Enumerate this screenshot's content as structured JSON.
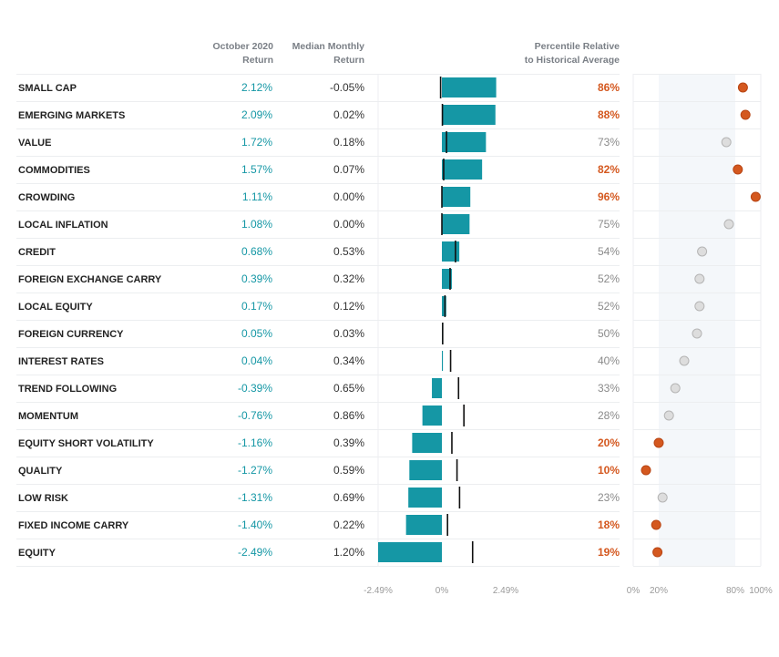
{
  "headers": {
    "return_line1": "October 2020",
    "return_line2": "Return",
    "median_line1": "Median Monthly",
    "median_line2": "Return",
    "pct_line1": "Percentile Relative",
    "pct_line2": "to Historical Average"
  },
  "chart_data": {
    "type": "table",
    "rows": [
      {
        "label": "SMALL CAP",
        "ret": 2.12,
        "ret_text": "2.12%",
        "median": -0.05,
        "median_text": "-0.05%",
        "pct": 86,
        "pct_text": "86%",
        "highlight": true
      },
      {
        "label": "EMERGING MARKETS",
        "ret": 2.09,
        "ret_text": "2.09%",
        "median": 0.02,
        "median_text": "0.02%",
        "pct": 88,
        "pct_text": "88%",
        "highlight": true
      },
      {
        "label": "VALUE",
        "ret": 1.72,
        "ret_text": "1.72%",
        "median": 0.18,
        "median_text": "0.18%",
        "pct": 73,
        "pct_text": "73%",
        "highlight": false
      },
      {
        "label": "COMMODITIES",
        "ret": 1.57,
        "ret_text": "1.57%",
        "median": 0.07,
        "median_text": "0.07%",
        "pct": 82,
        "pct_text": "82%",
        "highlight": true
      },
      {
        "label": "CROWDING",
        "ret": 1.11,
        "ret_text": "1.11%",
        "median": 0.0,
        "median_text": "0.00%",
        "pct": 96,
        "pct_text": "96%",
        "highlight": true
      },
      {
        "label": "LOCAL INFLATION",
        "ret": 1.08,
        "ret_text": "1.08%",
        "median": 0.0,
        "median_text": "0.00%",
        "pct": 75,
        "pct_text": "75%",
        "highlight": false
      },
      {
        "label": "CREDIT",
        "ret": 0.68,
        "ret_text": "0.68%",
        "median": 0.53,
        "median_text": "0.53%",
        "pct": 54,
        "pct_text": "54%",
        "highlight": false
      },
      {
        "label": "FOREIGN EXCHANGE CARRY",
        "ret": 0.39,
        "ret_text": "0.39%",
        "median": 0.32,
        "median_text": "0.32%",
        "pct": 52,
        "pct_text": "52%",
        "highlight": false
      },
      {
        "label": "LOCAL EQUITY",
        "ret": 0.17,
        "ret_text": "0.17%",
        "median": 0.12,
        "median_text": "0.12%",
        "pct": 52,
        "pct_text": "52%",
        "highlight": false
      },
      {
        "label": "FOREIGN CURRENCY",
        "ret": 0.05,
        "ret_text": "0.05%",
        "median": 0.03,
        "median_text": "0.03%",
        "pct": 50,
        "pct_text": "50%",
        "highlight": false
      },
      {
        "label": "INTEREST RATES",
        "ret": 0.04,
        "ret_text": "0.04%",
        "median": 0.34,
        "median_text": "0.34%",
        "pct": 40,
        "pct_text": "40%",
        "highlight": false
      },
      {
        "label": "TREND FOLLOWING",
        "ret": -0.39,
        "ret_text": "-0.39%",
        "median": 0.65,
        "median_text": "0.65%",
        "pct": 33,
        "pct_text": "33%",
        "highlight": false
      },
      {
        "label": "MOMENTUM",
        "ret": -0.76,
        "ret_text": "-0.76%",
        "median": 0.86,
        "median_text": "0.86%",
        "pct": 28,
        "pct_text": "28%",
        "highlight": false
      },
      {
        "label": "EQUITY SHORT VOLATILITY",
        "ret": -1.16,
        "ret_text": "-1.16%",
        "median": 0.39,
        "median_text": "0.39%",
        "pct": 20,
        "pct_text": "20%",
        "highlight": true
      },
      {
        "label": "QUALITY",
        "ret": -1.27,
        "ret_text": "-1.27%",
        "median": 0.59,
        "median_text": "0.59%",
        "pct": 10,
        "pct_text": "10%",
        "highlight": true
      },
      {
        "label": "LOW RISK",
        "ret": -1.31,
        "ret_text": "-1.31%",
        "median": 0.69,
        "median_text": "0.69%",
        "pct": 23,
        "pct_text": "23%",
        "highlight": false
      },
      {
        "label": "FIXED INCOME CARRY",
        "ret": -1.4,
        "ret_text": "-1.40%",
        "median": 0.22,
        "median_text": "0.22%",
        "pct": 18,
        "pct_text": "18%",
        "highlight": true
      },
      {
        "label": "EQUITY",
        "ret": -2.49,
        "ret_text": "-2.49%",
        "median": 1.2,
        "median_text": "1.20%",
        "pct": 19,
        "pct_text": "19%",
        "highlight": true
      }
    ],
    "bar_axis": {
      "min": -2.49,
      "max": 2.49,
      "ticks": [
        "-2.49%",
        "0%",
        "2.49%"
      ]
    },
    "pct_axis": {
      "min": 0,
      "max": 100,
      "ticks": [
        {
          "value": 0,
          "label": "0%"
        },
        {
          "value": 20,
          "label": "20%"
        },
        {
          "value": 80,
          "label": "80%"
        },
        {
          "value": 100,
          "label": "100%"
        }
      ],
      "shade_range": [
        20,
        80
      ]
    }
  },
  "colors": {
    "bar": "#1597a5",
    "return_text": "#1597a5",
    "dot_highlight": "#d4581f",
    "dot_highlight_stroke": "#b84514",
    "dot_normal": "#dddddd",
    "dot_normal_stroke": "#b5b5b5",
    "shade": "#f4f7fa",
    "row_line": "#eceef0"
  }
}
